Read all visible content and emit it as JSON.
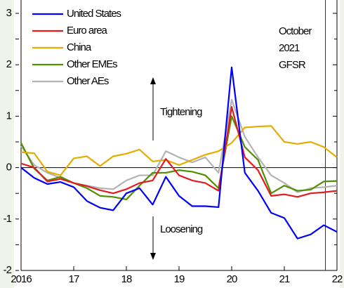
{
  "chart_data": {
    "type": "line",
    "x": [
      2016,
      2016.25,
      2016.5,
      2016.75,
      2017,
      2017.25,
      2017.5,
      2017.75,
      2018,
      2018.25,
      2018.5,
      2018.75,
      2019,
      2019.25,
      2019.5,
      2019.75,
      2020,
      2020.25,
      2020.5,
      2020.75,
      2021,
      2021.25,
      2021.5,
      2021.75,
      2022
    ],
    "series": [
      {
        "name": "United States",
        "color": "#0000ff",
        "values": [
          0.0,
          -0.2,
          -0.32,
          -0.28,
          -0.38,
          -0.65,
          -0.78,
          -0.83,
          -0.5,
          -0.4,
          -0.72,
          -0.18,
          -0.55,
          -0.75,
          -0.75,
          -0.77,
          1.95,
          -0.1,
          -0.45,
          -0.88,
          -0.98,
          -1.38,
          -1.3,
          -1.12,
          -1.25
        ]
      },
      {
        "name": "Euro area",
        "color": "#e41a1c",
        "values": [
          0.08,
          0.0,
          -0.27,
          -0.22,
          -0.3,
          -0.36,
          -0.44,
          -0.5,
          -0.42,
          -0.3,
          -0.25,
          0.17,
          -0.15,
          -0.25,
          -0.3,
          -0.45,
          1.18,
          0.2,
          -0.05,
          -0.55,
          -0.52,
          -0.57,
          -0.5,
          -0.48,
          -0.45
        ]
      },
      {
        "name": "China",
        "color": "#e6ac00",
        "values": [
          0.3,
          0.28,
          -0.08,
          -0.15,
          0.18,
          0.22,
          0.03,
          0.22,
          0.27,
          0.35,
          0.12,
          0.15,
          0.05,
          0.15,
          0.25,
          0.32,
          0.48,
          0.78,
          0.8,
          0.81,
          0.5,
          0.46,
          0.5,
          0.4,
          0.2
        ]
      },
      {
        "name": "Other EMEs",
        "color": "#4f8f00",
        "values": [
          0.48,
          -0.02,
          -0.25,
          -0.18,
          -0.3,
          -0.4,
          -0.55,
          -0.57,
          -0.62,
          -0.35,
          -0.1,
          -0.1,
          -0.05,
          -0.08,
          -0.15,
          -0.4,
          1.0,
          0.4,
          0.15,
          -0.5,
          -0.35,
          -0.45,
          -0.43,
          -0.27,
          -0.26
        ]
      },
      {
        "name": "Other AEs",
        "color": "#b3b3b3",
        "values": [
          0.42,
          0.05,
          -0.1,
          -0.2,
          -0.3,
          -0.35,
          -0.4,
          -0.42,
          -0.25,
          -0.15,
          -0.15,
          0.32,
          0.2,
          0.1,
          0.2,
          -0.1,
          1.32,
          0.6,
          0.2,
          -0.15,
          -0.3,
          -0.48,
          -0.4,
          -0.38,
          -0.35
        ]
      }
    ],
    "xlim": [
      2016,
      2022
    ],
    "xticks": [
      2016,
      {
        "value": 2017,
        "label": "17"
      },
      {
        "value": 2018,
        "label": "18"
      },
      {
        "value": 2019,
        "label": "19"
      },
      {
        "value": 2020,
        "label": "20"
      },
      {
        "value": 2021,
        "label": "21"
      },
      {
        "value": 2022,
        "label": "22"
      }
    ],
    "ylim": [
      -2,
      3
    ],
    "yticks": [
      -2,
      -1,
      0,
      1,
      2,
      3
    ],
    "yminor_ticks": [
      -1.5,
      -0.5,
      0.5,
      1.5,
      2.5
    ],
    "legend": "upper left",
    "annotations": {
      "tightening": "Tightening",
      "loosening": "Loosening",
      "event": {
        "x": 2021.78,
        "lines": [
          "October",
          "2021",
          "GFSR"
        ]
      }
    }
  }
}
